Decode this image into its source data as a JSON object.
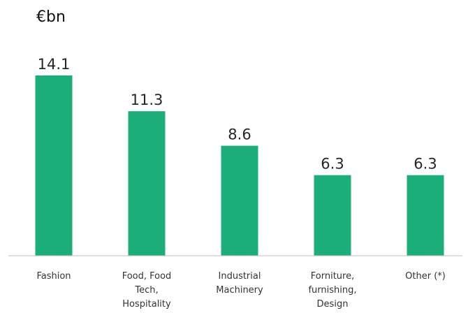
{
  "chart_data": {
    "type": "bar",
    "unit_label": "€bn",
    "categories": [
      [
        "Fashion"
      ],
      [
        "Food, Food",
        "Tech,",
        "Hospitality"
      ],
      [
        "Industrial",
        "Machinery"
      ],
      [
        "Forniture,",
        "furnishing,",
        "Design"
      ],
      [
        "Other (*)"
      ]
    ],
    "values": [
      14.1,
      11.3,
      8.6,
      6.3,
      6.3
    ],
    "value_labels": [
      "14.1",
      "11.3",
      "8.6",
      "6.3",
      "6.3"
    ],
    "ylim": [
      0,
      14.1
    ],
    "grid": false,
    "legend": "none",
    "colors": {
      "bar": "#1cae78",
      "axis": "#bfbfbf"
    }
  }
}
